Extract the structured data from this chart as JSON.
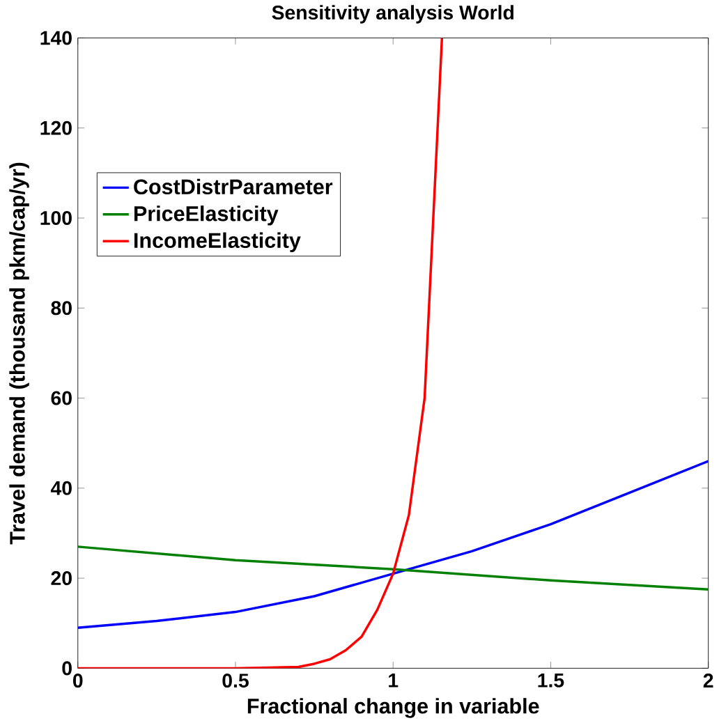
{
  "chart_data": {
    "type": "line",
    "title": "Sensitivity analysis World",
    "xlabel": "Fractional change in variable",
    "ylabel": "Travel demand (thousand pkm/cap/yr)",
    "xlim": [
      0,
      2
    ],
    "ylim": [
      0,
      140
    ],
    "xticks": [
      0,
      0.5,
      1,
      1.5,
      2
    ],
    "yticks": [
      0,
      20,
      40,
      60,
      80,
      100,
      120,
      140
    ],
    "legend": "left",
    "grid": false,
    "series": [
      {
        "name": "CostDistrParameter",
        "color": "#0000ff",
        "x": [
          0,
          0.25,
          0.5,
          0.75,
          1,
          1.25,
          1.5,
          1.75,
          2
        ],
        "values": [
          9,
          10.5,
          12.5,
          16,
          21,
          26,
          32,
          39,
          46
        ]
      },
      {
        "name": "PriceElasticity",
        "color": "#008000",
        "x": [
          0,
          0.5,
          1,
          1.5,
          2
        ],
        "values": [
          27,
          24,
          22,
          19.5,
          17.5
        ]
      },
      {
        "name": "IncomeElasticity",
        "color": "#ff0000",
        "x": [
          0,
          0.5,
          0.7,
          0.75,
          0.8,
          0.85,
          0.9,
          0.95,
          1,
          1.05,
          1.1,
          1.155
        ],
        "values": [
          0,
          0,
          0.3,
          1,
          2,
          4,
          7,
          13,
          21,
          34,
          60,
          140
        ]
      }
    ]
  }
}
